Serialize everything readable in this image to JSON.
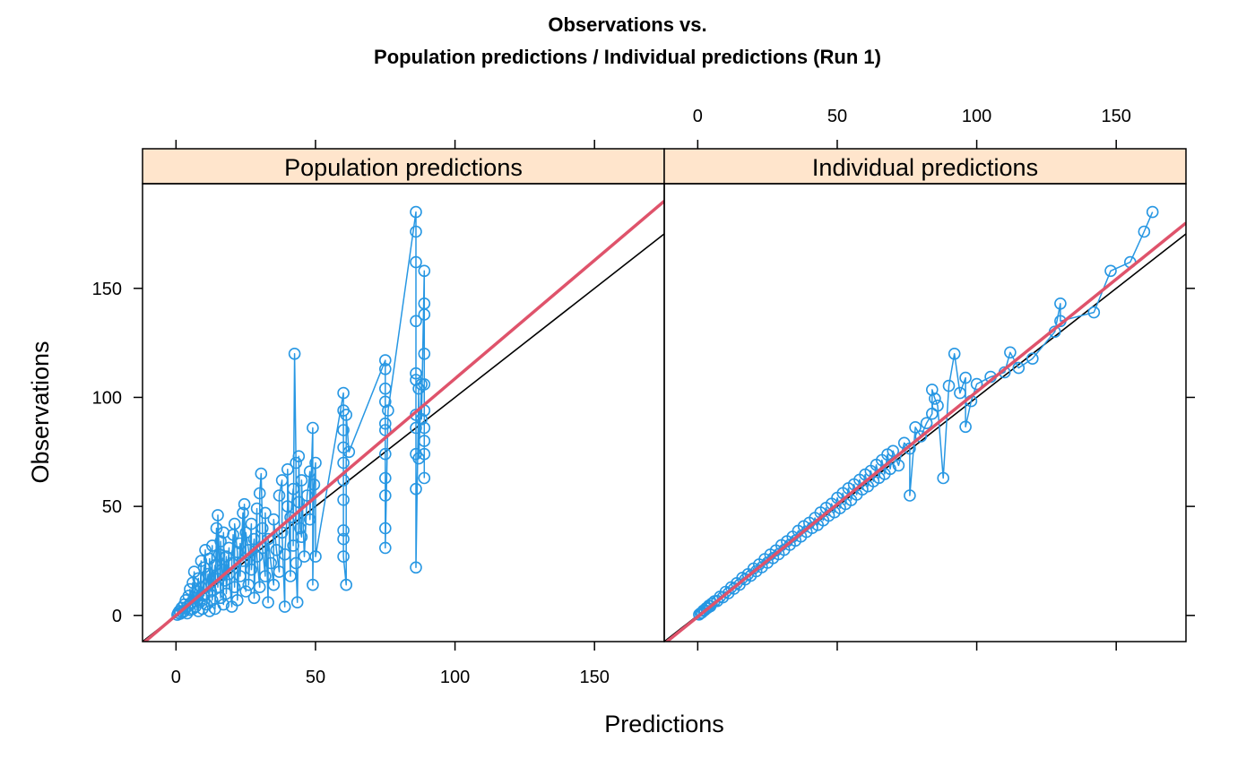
{
  "chart_data": {
    "type": "scatter",
    "title_line1": "Observations vs.",
    "title_line2": "Population predictions / Individual predictions (Run 1)",
    "xlabel": "Predictions",
    "ylabel": "Observations",
    "xlim": [
      -12,
      175
    ],
    "ylim": [
      -12,
      198
    ],
    "x_ticks": [
      0,
      50,
      100,
      150
    ],
    "y_ticks": [
      0,
      50,
      100,
      150
    ],
    "colors": {
      "points": "#2797e3",
      "smooth": "#df536b",
      "identity": "#000000",
      "strip": "#ffe5cc",
      "frame": "#000000"
    },
    "reference_line": "identity y = x",
    "panels": [
      {
        "name": "Population predictions",
        "smooth_line": [
          [
            -12,
            -13
          ],
          [
            175,
            190
          ]
        ],
        "points": [
          [
            0.5,
            0.3
          ],
          [
            0.8,
            1.2
          ],
          [
            1.2,
            2.0
          ],
          [
            1.5,
            0.8
          ],
          [
            2,
            3.5
          ],
          [
            2.5,
            1.5
          ],
          [
            3,
            5
          ],
          [
            3,
            2
          ],
          [
            3.5,
            7
          ],
          [
            4,
            1
          ],
          [
            4,
            4
          ],
          [
            4.5,
            9
          ],
          [
            5,
            2.5
          ],
          [
            5,
            12
          ],
          [
            5.5,
            6
          ],
          [
            6,
            15
          ],
          [
            6,
            3
          ],
          [
            6.5,
            20
          ],
          [
            7,
            8
          ],
          [
            7,
            4
          ],
          [
            7.5,
            11
          ],
          [
            8,
            2
          ],
          [
            8,
            17
          ],
          [
            8.5,
            6
          ],
          [
            9,
            25
          ],
          [
            9,
            13
          ],
          [
            9.5,
            3
          ],
          [
            10,
            22
          ],
          [
            10,
            9
          ],
          [
            10.5,
            30
          ],
          [
            11,
            5
          ],
          [
            11,
            14
          ],
          [
            11.5,
            19
          ],
          [
            12,
            2
          ],
          [
            12,
            26
          ],
          [
            12.5,
            11
          ],
          [
            13,
            32
          ],
          [
            13,
            7
          ],
          [
            13.5,
            17
          ],
          [
            14,
            23
          ],
          [
            14,
            3
          ],
          [
            14.5,
            40
          ],
          [
            15,
            13
          ],
          [
            15,
            46
          ],
          [
            15.5,
            28
          ],
          [
            16,
            8
          ],
          [
            16,
            34
          ],
          [
            16.5,
            21
          ],
          [
            17,
            5
          ],
          [
            17,
            38
          ],
          [
            17.5,
            16
          ],
          [
            18,
            27
          ],
          [
            18,
            10
          ],
          [
            19,
            31
          ],
          [
            19,
            19
          ],
          [
            20,
            4
          ],
          [
            20,
            24
          ],
          [
            20.5,
            37
          ],
          [
            21,
            13
          ],
          [
            21,
            42
          ],
          [
            22,
            29
          ],
          [
            22,
            7
          ],
          [
            23,
            33
          ],
          [
            23,
            18
          ],
          [
            24,
            47
          ],
          [
            24,
            25
          ],
          [
            24.5,
            51
          ],
          [
            25,
            11
          ],
          [
            25,
            38
          ],
          [
            26,
            30
          ],
          [
            26,
            14
          ],
          [
            27,
            42
          ],
          [
            27,
            21
          ],
          [
            28,
            35
          ],
          [
            28,
            8
          ],
          [
            29,
            49
          ],
          [
            29,
            27
          ],
          [
            30,
            13
          ],
          [
            30,
            56
          ],
          [
            30.5,
            65
          ],
          [
            31,
            40
          ],
          [
            31,
            31
          ],
          [
            32,
            18
          ],
          [
            32,
            47
          ],
          [
            33,
            6
          ],
          [
            33,
            35
          ],
          [
            34,
            24
          ],
          [
            35,
            14
          ],
          [
            35,
            44
          ],
          [
            36,
            30
          ],
          [
            37,
            20
          ],
          [
            37,
            55
          ],
          [
            38,
            62
          ],
          [
            38,
            38
          ],
          [
            39,
            4
          ],
          [
            39,
            28
          ],
          [
            40,
            50
          ],
          [
            40,
            67
          ],
          [
            41,
            18
          ],
          [
            41,
            45
          ],
          [
            42,
            58
          ],
          [
            42,
            32
          ],
          [
            42.5,
            120
          ],
          [
            43,
            70
          ],
          [
            43,
            24
          ],
          [
            43.5,
            6
          ],
          [
            44,
            52
          ],
          [
            44,
            73
          ],
          [
            44.5,
            40
          ],
          [
            45,
            36
          ],
          [
            45,
            62
          ],
          [
            46,
            27
          ],
          [
            47,
            55
          ],
          [
            48,
            66
          ],
          [
            48,
            44
          ],
          [
            49,
            86
          ],
          [
            49,
            14
          ],
          [
            49.5,
            60
          ],
          [
            50,
            70
          ],
          [
            50,
            27
          ],
          [
            60,
            102
          ],
          [
            60,
            94
          ],
          [
            60,
            85
          ],
          [
            60,
            77
          ],
          [
            60,
            70
          ],
          [
            60,
            62
          ],
          [
            60,
            53
          ],
          [
            60,
            39
          ],
          [
            60,
            35
          ],
          [
            60,
            27
          ],
          [
            61,
            14
          ],
          [
            61,
            92
          ],
          [
            62,
            75
          ],
          [
            75,
            117
          ],
          [
            75,
            113
          ],
          [
            75,
            104
          ],
          [
            75,
            98
          ],
          [
            75,
            88
          ],
          [
            75,
            85
          ],
          [
            75,
            74
          ],
          [
            75,
            63
          ],
          [
            75,
            55
          ],
          [
            75,
            40
          ],
          [
            75,
            31
          ],
          [
            76,
            94
          ],
          [
            86,
            185
          ],
          [
            86,
            176
          ],
          [
            86,
            162
          ],
          [
            86,
            135
          ],
          [
            86,
            111
          ],
          [
            86,
            108
          ],
          [
            86,
            92
          ],
          [
            86,
            86
          ],
          [
            86,
            74
          ],
          [
            86,
            58
          ],
          [
            86,
            22
          ],
          [
            87,
            104
          ],
          [
            87,
            72
          ],
          [
            88,
            106
          ],
          [
            88,
            90
          ],
          [
            89,
            158
          ],
          [
            89,
            143
          ],
          [
            89,
            138
          ],
          [
            89,
            120
          ],
          [
            89,
            106
          ],
          [
            89,
            94
          ],
          [
            89,
            86
          ],
          [
            89,
            80
          ],
          [
            89,
            74
          ],
          [
            89,
            63
          ]
        ]
      },
      {
        "name": "Individual predictions",
        "smooth_line": [
          [
            -12,
            -13
          ],
          [
            175,
            180
          ]
        ],
        "points": [
          [
            0.5,
            0.4
          ],
          [
            1,
            1
          ],
          [
            1.5,
            1.3
          ],
          [
            2,
            2.2
          ],
          [
            2.5,
            2.4
          ],
          [
            3,
            3.3
          ],
          [
            3.5,
            3.4
          ],
          [
            4,
            4.5
          ],
          [
            4.5,
            4.2
          ],
          [
            5,
            5.4
          ],
          [
            6,
            6.5
          ],
          [
            7,
            6.6
          ],
          [
            8,
            8.6
          ],
          [
            9,
            8.3
          ],
          [
            10,
            10.8
          ],
          [
            11,
            10.2
          ],
          [
            12,
            12.9
          ],
          [
            13,
            12.3
          ],
          [
            14,
            14.8
          ],
          [
            15,
            14.1
          ],
          [
            16,
            17.2
          ],
          [
            17,
            16.5
          ],
          [
            18,
            18.9
          ],
          [
            19,
            18.2
          ],
          [
            20,
            21.5
          ],
          [
            21,
            20.3
          ],
          [
            22,
            23.4
          ],
          [
            23,
            22.1
          ],
          [
            24,
            25.8
          ],
          [
            25,
            24.2
          ],
          [
            26,
            27.9
          ],
          [
            27,
            26.3
          ],
          [
            28,
            29.8
          ],
          [
            29,
            28.1
          ],
          [
            30,
            32.2
          ],
          [
            31,
            30.1
          ],
          [
            32,
            34
          ],
          [
            33,
            32.4
          ],
          [
            34,
            36.1
          ],
          [
            35,
            34.3
          ],
          [
            36,
            38.8
          ],
          [
            37,
            36.2
          ],
          [
            38,
            40.9
          ],
          [
            39,
            38.3
          ],
          [
            40,
            42.5
          ],
          [
            41,
            40.1
          ],
          [
            42,
            44.7
          ],
          [
            43,
            41.5
          ],
          [
            44,
            47.2
          ],
          [
            45,
            43.6
          ],
          [
            46,
            49.3
          ],
          [
            47,
            45.8
          ],
          [
            48,
            51.2
          ],
          [
            49,
            47.3
          ],
          [
            50,
            53.9
          ],
          [
            51,
            49.2
          ],
          [
            52,
            56.1
          ],
          [
            53,
            51.1
          ],
          [
            54,
            58.3
          ],
          [
            55,
            52.9
          ],
          [
            56,
            60.1
          ],
          [
            57,
            55.4
          ],
          [
            58,
            62.2
          ],
          [
            59,
            57.8
          ],
          [
            60,
            64.6
          ],
          [
            61,
            59.2
          ],
          [
            62,
            66.3
          ],
          [
            63,
            61.5
          ],
          [
            64,
            69.1
          ],
          [
            65,
            63.1
          ],
          [
            66,
            71.2
          ],
          [
            67,
            64.9
          ],
          [
            68,
            73.8
          ],
          [
            69,
            67.2
          ],
          [
            70,
            75.4
          ],
          [
            72,
            68.8
          ],
          [
            74,
            79.1
          ],
          [
            76,
            76.5
          ],
          [
            76,
            55
          ],
          [
            78,
            86.3
          ],
          [
            80,
            82.1
          ],
          [
            82,
            88.2
          ],
          [
            84,
            92.5
          ],
          [
            84,
            103.5
          ],
          [
            85,
            99.4
          ],
          [
            86,
            96.2
          ],
          [
            88,
            63
          ],
          [
            90,
            105.3
          ],
          [
            92,
            120
          ],
          [
            94,
            102
          ],
          [
            96,
            109
          ],
          [
            96,
            86.5
          ],
          [
            98,
            98.3
          ],
          [
            100,
            106.1
          ],
          [
            105,
            109.4
          ],
          [
            110,
            111.5
          ],
          [
            112,
            120.6
          ],
          [
            115,
            113.5
          ],
          [
            120,
            117.8
          ],
          [
            128,
            130.1
          ],
          [
            130,
            143
          ],
          [
            130,
            135
          ],
          [
            142,
            139
          ],
          [
            148,
            158
          ],
          [
            155,
            162
          ],
          [
            160,
            176
          ],
          [
            163,
            185
          ]
        ]
      }
    ]
  }
}
